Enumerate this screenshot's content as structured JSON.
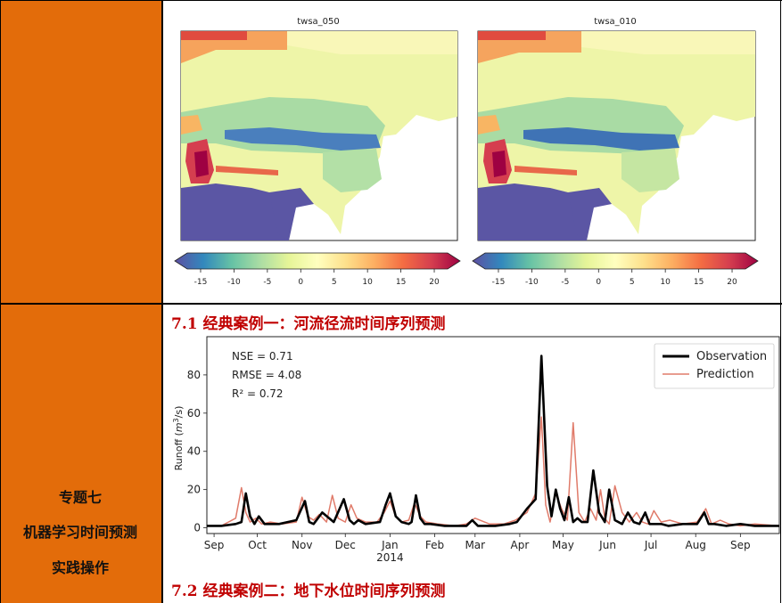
{
  "side_labels": [
    "专题七",
    "机器学习时间预测",
    "实践操作"
  ],
  "section_titles": [
    "7.1 经典案例一：河流径流时间序列预测",
    "7.2 经典案例二：地下水位时间序列预测"
  ],
  "maps": [
    {
      "title": "twsa_050"
    },
    {
      "title": "twsa_010"
    }
  ],
  "colorbar": {
    "ticks": [
      "-15",
      "-10",
      "-5",
      "0",
      "5",
      "10",
      "15",
      "20"
    ],
    "tick_values": [
      -15,
      -10,
      -5,
      0,
      5,
      10,
      15,
      20
    ],
    "colormap": "Spectral_r",
    "colors": [
      "#5e4fa2",
      "#3288bd",
      "#66c2a5",
      "#abdda4",
      "#e6f598",
      "#ffffbf",
      "#fee08b",
      "#fdae61",
      "#f46d43",
      "#d53e4f",
      "#9e0142"
    ]
  },
  "chart_data": {
    "type": "line",
    "ylabel": "Runoff ($m^3$/s)",
    "ylim": [
      -3,
      100
    ],
    "yticks": [
      0,
      20,
      40,
      60,
      80
    ],
    "x_year_label": "2014",
    "x_month_labels": [
      "Sep",
      "Oct",
      "Nov",
      "Dec",
      "Jan",
      "Feb",
      "Mar",
      "Apr",
      "May",
      "Jun",
      "Jul",
      "Aug",
      "Sep"
    ],
    "x_month_days": [
      5,
      35,
      66,
      96,
      127,
      158,
      186,
      217,
      247,
      278,
      308,
      339,
      370
    ],
    "x_range_days": [
      0,
      397
    ],
    "annotations": [
      "NSE = 0.71",
      "RMSE = 4.08",
      "R² = 0.72"
    ],
    "legend_position": "top-right",
    "series": [
      {
        "name": "Observation",
        "color": "#000000",
        "x": [
          0,
          10,
          20,
          24,
          27,
          30,
          33,
          36,
          40,
          50,
          62,
          68,
          71,
          74,
          80,
          88,
          95,
          99,
          102,
          105,
          110,
          120,
          124,
          127,
          131,
          135,
          140,
          142,
          145,
          148,
          151,
          155,
          165,
          175,
          180,
          184,
          188,
          200,
          210,
          215,
          222,
          228,
          232,
          236,
          239,
          242,
          245,
          248,
          251,
          254,
          257,
          260,
          264,
          268,
          272,
          276,
          279,
          283,
          288,
          292,
          296,
          300,
          304,
          307,
          311,
          315,
          320,
          330,
          340,
          345,
          348,
          352,
          360,
          370,
          380,
          397
        ],
        "y": [
          1,
          1,
          2,
          3,
          18,
          6,
          2,
          6,
          2,
          2,
          4,
          14,
          3,
          2,
          8,
          3,
          15,
          4,
          2,
          4,
          2,
          3,
          12,
          18,
          6,
          3,
          2,
          3,
          17,
          5,
          2,
          2,
          1,
          1,
          1,
          4,
          1,
          1,
          2,
          3,
          10,
          15,
          90,
          22,
          6,
          20,
          10,
          4,
          16,
          3,
          5,
          3,
          3,
          30,
          8,
          3,
          20,
          4,
          2,
          8,
          3,
          2,
          8,
          2,
          2,
          2,
          1,
          2,
          2,
          8,
          2,
          2,
          1,
          2,
          1,
          1
        ]
      },
      {
        "name": "Prediction",
        "color": "#e07b6a",
        "x": [
          0,
          10,
          20,
          24,
          27,
          30,
          34,
          38,
          44,
          52,
          62,
          66,
          70,
          74,
          78,
          83,
          87,
          91,
          96,
          100,
          104,
          110,
          118,
          123,
          127,
          131,
          135,
          140,
          144,
          148,
          152,
          160,
          172,
          180,
          186,
          196,
          206,
          214,
          222,
          228,
          232,
          235,
          238,
          242,
          246,
          250,
          254,
          258,
          262,
          266,
          270,
          273,
          276,
          279,
          283,
          288,
          293,
          298,
          302,
          306,
          310,
          315,
          321,
          330,
          340,
          346,
          350,
          356,
          362,
          370,
          380,
          397
        ],
        "y": [
          1,
          1,
          5,
          21,
          8,
          3,
          5,
          2,
          3,
          2,
          3,
          16,
          6,
          4,
          7,
          3,
          17,
          5,
          3,
          12,
          5,
          3,
          3,
          8,
          14,
          6,
          3,
          4,
          13,
          6,
          3,
          2,
          1,
          2,
          5,
          2,
          2,
          4,
          8,
          18,
          58,
          12,
          3,
          18,
          10,
          4,
          55,
          8,
          3,
          10,
          4,
          20,
          5,
          2,
          22,
          8,
          3,
          8,
          3,
          2,
          9,
          3,
          4,
          2,
          3,
          10,
          2,
          4,
          2,
          1,
          2,
          1
        ]
      }
    ]
  }
}
